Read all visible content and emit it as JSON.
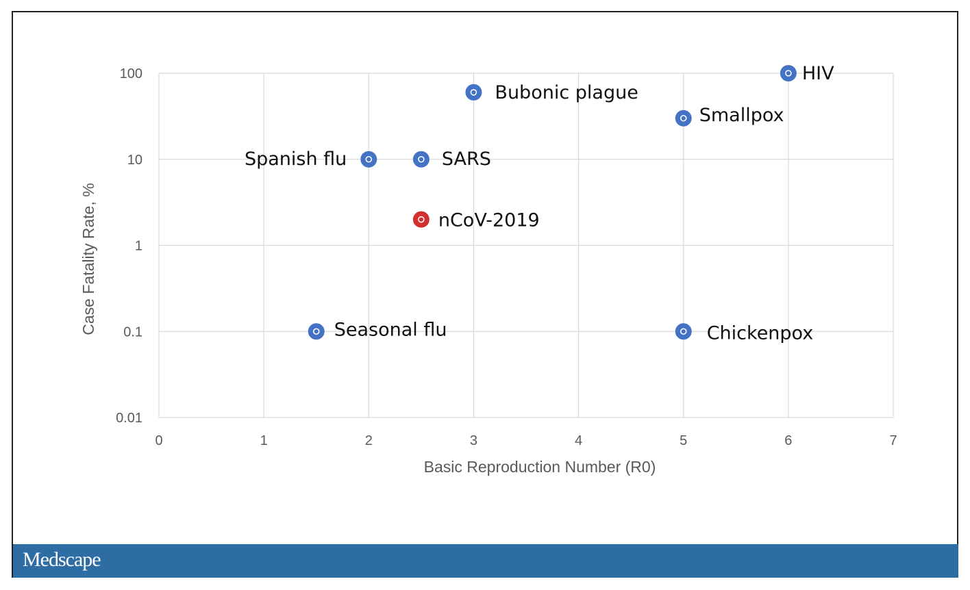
{
  "chart_data": {
    "type": "scatter",
    "title": "",
    "xlabel": "Basic Reproduction Number (R0)",
    "ylabel": "Case Fatality Rate, %",
    "xlim": [
      0,
      7
    ],
    "ylim": [
      0.01,
      100
    ],
    "yscale": "log",
    "x_ticks": [
      "0",
      "1",
      "2",
      "3",
      "4",
      "5",
      "6",
      "7"
    ],
    "y_ticks": [
      "0.01",
      "0.1",
      "1",
      "10",
      "100"
    ],
    "grid": true,
    "legend": "none",
    "points": [
      {
        "label": "HIV",
        "x": 6,
        "y": 100,
        "color": "#4472C4"
      },
      {
        "label": "Bubonic plague",
        "x": 3,
        "y": 60,
        "color": "#4472C4"
      },
      {
        "label": "Smallpox",
        "x": 5,
        "y": 30,
        "color": "#4472C4"
      },
      {
        "label": "Spanish flu",
        "x": 2,
        "y": 10,
        "color": "#4472C4"
      },
      {
        "label": "SARS",
        "x": 2.5,
        "y": 10,
        "color": "#4472C4"
      },
      {
        "label": "nCoV-2019",
        "x": 2.5,
        "y": 2,
        "color": "#D32F2F"
      },
      {
        "label": "Seasonal flu",
        "x": 1.5,
        "y": 0.1,
        "color": "#4472C4"
      },
      {
        "label": "Chickenpox",
        "x": 5,
        "y": 0.1,
        "color": "#4472C4"
      }
    ]
  },
  "footer": {
    "brand": "Medscape",
    "bar_color": "#2E6DA4"
  }
}
